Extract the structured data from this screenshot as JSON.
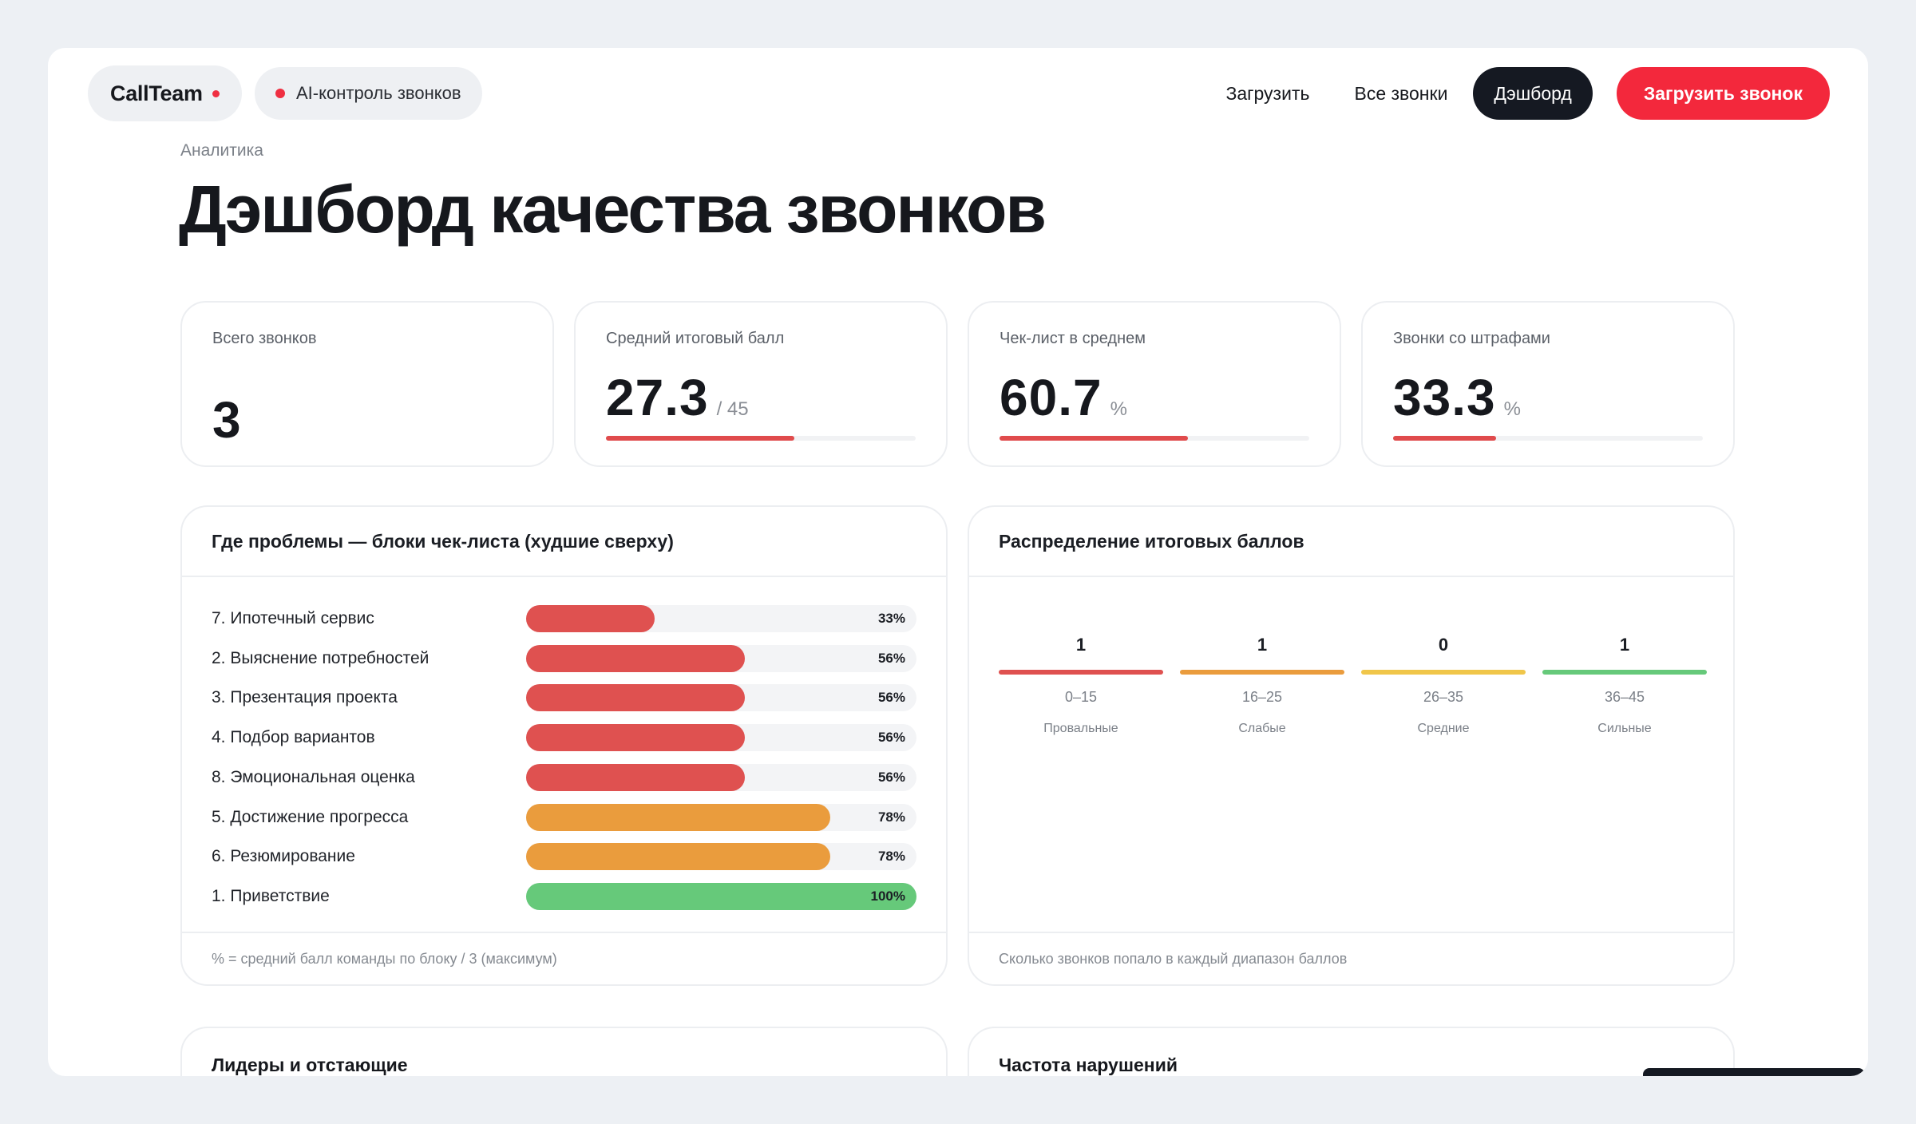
{
  "header": {
    "brand": "CallTeam",
    "tag": "AI-контроль звонков",
    "nav": {
      "upload": "Загрузить",
      "all_calls": "Все звонки",
      "dashboard": "Дэшборд",
      "cta": "Загрузить звонок"
    }
  },
  "breadcrumb": "Аналитика",
  "title": "Дэшборд качества звонков",
  "kpis": [
    {
      "label": "Всего звонков",
      "value": "3",
      "unit": ""
    },
    {
      "label": "Средний итоговый балл",
      "value": "27.3",
      "unit": "/ 45",
      "progress": 0.607
    },
    {
      "label": "Чек-лист в среднем",
      "value": "60.7",
      "unit": "%",
      "progress": 0.607
    },
    {
      "label": "Звонки со штрафами",
      "value": "33.3",
      "unit": "%",
      "progress": 0.333
    }
  ],
  "blocks_panel": {
    "title": "Где проблемы — блоки чек-листа (худшие сверху)",
    "footnote": "% = средний балл команды по блоку / 3 (максимум)",
    "rows": [
      {
        "label": "7. Ипотечный сервис",
        "pct_label": "33%",
        "value": 33,
        "color": "#df5150"
      },
      {
        "label": "2. Выяснение потребностей",
        "pct_label": "56%",
        "value": 56,
        "color": "#df5150"
      },
      {
        "label": "3. Презентация проекта",
        "pct_label": "56%",
        "value": 56,
        "color": "#df5150"
      },
      {
        "label": "4. Подбор вариантов",
        "pct_label": "56%",
        "value": 56,
        "color": "#df5150"
      },
      {
        "label": "8. Эмоциональная оценка",
        "pct_label": "56%",
        "value": 56,
        "color": "#df5150"
      },
      {
        "label": "5. Достижение прогресса",
        "pct_label": "78%",
        "value": 78,
        "color": "#ea9c3d"
      },
      {
        "label": "6. Резюмирование",
        "pct_label": "78%",
        "value": 78,
        "color": "#ea9c3d"
      },
      {
        "label": "1. Приветствие",
        "pct_label": "100%",
        "value": 100,
        "color": "#66c97a"
      }
    ]
  },
  "distribution_panel": {
    "title": "Распределение итоговых баллов",
    "footnote": "Сколько звонков попало в каждый диапазон баллов",
    "buckets": [
      {
        "count": "1",
        "range": "0–15",
        "name": "Провальные",
        "color": "#df5150"
      },
      {
        "count": "1",
        "range": "16–25",
        "name": "Слабые",
        "color": "#ea9c3d"
      },
      {
        "count": "0",
        "range": "26–35",
        "name": "Средние",
        "color": "#f0c64a"
      },
      {
        "count": "1",
        "range": "36–45",
        "name": "Сильные",
        "color": "#66c97a"
      }
    ]
  },
  "lower_panels": {
    "leaders": "Лидеры и отстающие",
    "violations": "Частота нарушений"
  }
}
